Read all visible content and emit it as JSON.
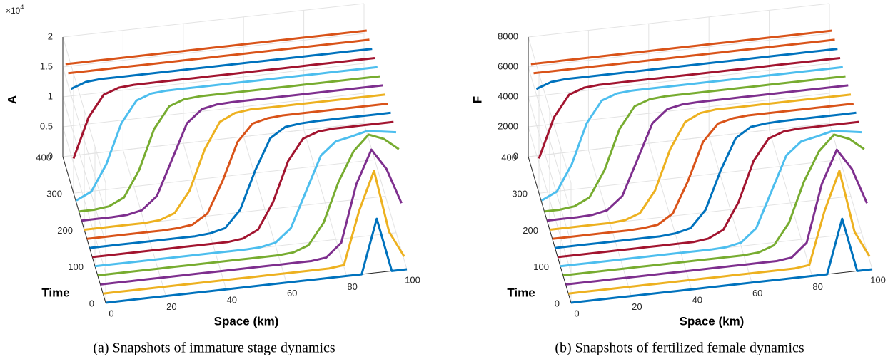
{
  "chart_data": [
    {
      "type": "waterfall",
      "caption": "(a) Snapshots of immature stage dynamics",
      "xlabel": "Space (km)",
      "ylabel": "Time",
      "zlabel": "A",
      "z_multiplier": {
        "base": "×10",
        "exponent": "4"
      },
      "xlim": [
        0,
        100
      ],
      "xticks": [
        0,
        20,
        40,
        60,
        80,
        100
      ],
      "ylim": [
        0,
        400
      ],
      "yticks": [
        0,
        100,
        200,
        300,
        400
      ],
      "zlim": [
        0,
        20000
      ],
      "zticks": [
        0,
        {
          "value": 5000,
          "label": "0.5"
        },
        {
          "value": 10000,
          "label": "1"
        },
        {
          "value": 15000,
          "label": "1.5"
        },
        {
          "value": 20000,
          "label": "2"
        }
      ],
      "grid": true,
      "x": [
        0,
        5,
        10,
        15,
        20,
        25,
        30,
        35,
        40,
        45,
        50,
        55,
        60,
        65,
        70,
        75,
        80,
        85,
        90,
        95,
        100
      ],
      "series": [
        {
          "time": 0,
          "color": "#0072BD",
          "values": [
            0,
            0,
            0,
            0,
            0,
            0,
            0,
            0,
            0,
            0,
            0,
            0,
            0,
            0,
            0,
            0,
            0,
            0,
            9000,
            0,
            0
          ]
        },
        {
          "time": 25,
          "color": "#EDB120",
          "values": [
            0,
            0,
            0,
            0,
            0,
            0,
            0,
            0,
            0,
            0,
            0,
            0,
            0,
            0,
            0,
            0,
            300,
            9000,
            15500,
            5000,
            600
          ]
        },
        {
          "time": 50,
          "color": "#7E2F8E",
          "values": [
            0,
            0,
            0,
            0,
            0,
            0,
            0,
            0,
            0,
            0,
            0,
            0,
            0,
            0,
            0,
            300,
            2500,
            12000,
            17500,
            14000,
            8000
          ]
        },
        {
          "time": 75,
          "color": "#77AC30",
          "values": [
            0,
            0,
            0,
            0,
            0,
            0,
            0,
            0,
            0,
            0,
            0,
            0,
            0,
            200,
            1100,
            4600,
            11200,
            16000,
            18500,
            17500,
            15500
          ]
        },
        {
          "time": 100,
          "color": "#4DBEEE",
          "values": [
            0,
            0,
            0,
            0,
            0,
            0,
            0,
            0,
            0,
            0,
            0,
            100,
            600,
            2700,
            8500,
            14300,
            16400,
            16900,
            17500,
            17200,
            16800
          ]
        },
        {
          "time": 125,
          "color": "#A2142F",
          "values": [
            0,
            0,
            0,
            0,
            0,
            0,
            0,
            0,
            0,
            0,
            300,
            1500,
            5800,
            12400,
            15900,
            16800,
            17000,
            17000,
            17000,
            17000,
            17000
          ]
        },
        {
          "time": 150,
          "color": "#0072BD",
          "values": [
            0,
            0,
            0,
            0,
            0,
            0,
            0,
            0,
            200,
            800,
            3600,
            9900,
            15000,
            16600,
            16900,
            17000,
            17000,
            17000,
            17000,
            17000,
            17000
          ]
        },
        {
          "time": 175,
          "color": "#D95319",
          "values": [
            0,
            0,
            0,
            0,
            0,
            0,
            100,
            400,
            2000,
            7100,
            13400,
            16200,
            16800,
            17000,
            17000,
            17000,
            17000,
            17000,
            17000,
            17000,
            17000
          ]
        },
        {
          "time": 200,
          "color": "#EDB120",
          "values": [
            0,
            0,
            0,
            0,
            0,
            200,
            1100,
            4600,
            11200,
            15500,
            16700,
            17000,
            17000,
            17000,
            17000,
            17000,
            17000,
            17000,
            17000,
            17000,
            17000
          ]
        },
        {
          "time": 225,
          "color": "#7E2F8E",
          "values": [
            0,
            0,
            0,
            100,
            600,
            2700,
            8500,
            14300,
            16400,
            16900,
            17000,
            17000,
            17000,
            17000,
            17000,
            17000,
            17000,
            17000,
            17000,
            17000,
            17000
          ]
        },
        {
          "time": 250,
          "color": "#77AC30",
          "values": [
            0,
            0,
            300,
            1500,
            5800,
            12400,
            15900,
            16800,
            17000,
            17000,
            17000,
            17000,
            17000,
            17000,
            17000,
            17000,
            17000,
            17000,
            17000,
            17000,
            17000
          ]
        },
        {
          "time": 275,
          "color": "#4DBEEE",
          "values": [
            300,
            1500,
            5800,
            12400,
            15900,
            16800,
            17000,
            17000,
            17000,
            17000,
            17000,
            17000,
            17000,
            17000,
            17000,
            17000,
            17000,
            17000,
            17000,
            17000,
            17000
          ]
        },
        {
          "time": 300,
          "color": "#A2142F",
          "values": [
            5800,
            12400,
            15900,
            16800,
            17000,
            17000,
            17000,
            17000,
            17000,
            17000,
            17000,
            17000,
            17000,
            17000,
            17000,
            17000,
            17000,
            17000,
            17000,
            17000,
            17000
          ]
        },
        {
          "time": 325,
          "color": "#0072BD",
          "values": [
            15900,
            16800,
            17000,
            17000,
            17000,
            17000,
            17000,
            17000,
            17000,
            17000,
            17000,
            17000,
            17000,
            17000,
            17000,
            17000,
            17000,
            17000,
            17000,
            17000,
            17000
          ]
        },
        {
          "time": 350,
          "color": "#D95319",
          "values": [
            17000,
            17000,
            17000,
            17000,
            17000,
            17000,
            17000,
            17000,
            17000,
            17000,
            17000,
            17000,
            17000,
            17000,
            17000,
            17000,
            17000,
            17000,
            17000,
            17000,
            17000
          ]
        },
        {
          "time": 375,
          "color": "#D95319",
          "values": [
            17000,
            17000,
            17000,
            17000,
            17000,
            17000,
            17000,
            17000,
            17000,
            17000,
            17000,
            17000,
            17000,
            17000,
            17000,
            17000,
            17000,
            17000,
            17000,
            17000,
            17000
          ]
        }
      ]
    },
    {
      "type": "waterfall",
      "caption": "(b) Snapshots of fertilized female dynamics",
      "xlabel": "Space (km)",
      "ylabel": "Time",
      "zlabel": "F",
      "xlim": [
        0,
        100
      ],
      "xticks": [
        0,
        20,
        40,
        60,
        80,
        100
      ],
      "ylim": [
        0,
        400
      ],
      "yticks": [
        0,
        100,
        200,
        300,
        400
      ],
      "zlim": [
        0,
        8000
      ],
      "zticks": [
        0,
        2000,
        4000,
        6000,
        8000
      ],
      "grid": true,
      "x": [
        0,
        5,
        10,
        15,
        20,
        25,
        30,
        35,
        40,
        45,
        50,
        55,
        60,
        65,
        70,
        75,
        80,
        85,
        90,
        95,
        100
      ],
      "series": [
        {
          "time": 0,
          "color": "#0072BD",
          "values": [
            0,
            0,
            0,
            0,
            0,
            0,
            0,
            0,
            0,
            0,
            0,
            0,
            0,
            0,
            0,
            0,
            0,
            0,
            3600,
            0,
            0
          ]
        },
        {
          "time": 25,
          "color": "#EDB120",
          "values": [
            0,
            0,
            0,
            0,
            0,
            0,
            0,
            0,
            0,
            0,
            0,
            0,
            0,
            0,
            0,
            0,
            120,
            3600,
            6200,
            2000,
            240
          ]
        },
        {
          "time": 50,
          "color": "#7E2F8E",
          "values": [
            0,
            0,
            0,
            0,
            0,
            0,
            0,
            0,
            0,
            0,
            0,
            0,
            0,
            0,
            0,
            120,
            1000,
            4800,
            7000,
            5600,
            3200
          ]
        },
        {
          "time": 75,
          "color": "#77AC30",
          "values": [
            0,
            0,
            0,
            0,
            0,
            0,
            0,
            0,
            0,
            0,
            0,
            0,
            0,
            80,
            440,
            1840,
            4480,
            6400,
            7400,
            7000,
            6200
          ]
        },
        {
          "time": 100,
          "color": "#4DBEEE",
          "values": [
            0,
            0,
            0,
            0,
            0,
            0,
            0,
            0,
            0,
            0,
            0,
            40,
            240,
            1080,
            3400,
            5720,
            6560,
            6760,
            7000,
            6880,
            6720
          ]
        },
        {
          "time": 125,
          "color": "#A2142F",
          "values": [
            0,
            0,
            0,
            0,
            0,
            0,
            0,
            0,
            0,
            0,
            120,
            600,
            2320,
            4960,
            6360,
            6720,
            6800,
            6800,
            6800,
            6800,
            6800
          ]
        },
        {
          "time": 150,
          "color": "#0072BD",
          "values": [
            0,
            0,
            0,
            0,
            0,
            0,
            0,
            0,
            80,
            320,
            1440,
            3960,
            6000,
            6640,
            6760,
            6800,
            6800,
            6800,
            6800,
            6800,
            6800
          ]
        },
        {
          "time": 175,
          "color": "#D95319",
          "values": [
            0,
            0,
            0,
            0,
            0,
            0,
            40,
            160,
            800,
            2840,
            5360,
            6480,
            6720,
            6800,
            6800,
            6800,
            6800,
            6800,
            6800,
            6800,
            6800
          ]
        },
        {
          "time": 200,
          "color": "#EDB120",
          "values": [
            0,
            0,
            0,
            0,
            0,
            80,
            440,
            1840,
            4480,
            6200,
            6680,
            6800,
            6800,
            6800,
            6800,
            6800,
            6800,
            6800,
            6800,
            6800,
            6800
          ]
        },
        {
          "time": 225,
          "color": "#7E2F8E",
          "values": [
            0,
            0,
            0,
            40,
            240,
            1080,
            3400,
            5720,
            6560,
            6760,
            6800,
            6800,
            6800,
            6800,
            6800,
            6800,
            6800,
            6800,
            6800,
            6800,
            6800
          ]
        },
        {
          "time": 250,
          "color": "#77AC30",
          "values": [
            0,
            0,
            120,
            600,
            2320,
            4960,
            6360,
            6720,
            6800,
            6800,
            6800,
            6800,
            6800,
            6800,
            6800,
            6800,
            6800,
            6800,
            6800,
            6800,
            6800
          ]
        },
        {
          "time": 275,
          "color": "#4DBEEE",
          "values": [
            120,
            600,
            2320,
            4960,
            6360,
            6720,
            6800,
            6800,
            6800,
            6800,
            6800,
            6800,
            6800,
            6800,
            6800,
            6800,
            6800,
            6800,
            6800,
            6800,
            6800
          ]
        },
        {
          "time": 300,
          "color": "#A2142F",
          "values": [
            2320,
            4960,
            6360,
            6720,
            6800,
            6800,
            6800,
            6800,
            6800,
            6800,
            6800,
            6800,
            6800,
            6800,
            6800,
            6800,
            6800,
            6800,
            6800,
            6800,
            6800
          ]
        },
        {
          "time": 325,
          "color": "#0072BD",
          "values": [
            6360,
            6720,
            6800,
            6800,
            6800,
            6800,
            6800,
            6800,
            6800,
            6800,
            6800,
            6800,
            6800,
            6800,
            6800,
            6800,
            6800,
            6800,
            6800,
            6800,
            6800
          ]
        },
        {
          "time": 350,
          "color": "#D95319",
          "values": [
            6800,
            6800,
            6800,
            6800,
            6800,
            6800,
            6800,
            6800,
            6800,
            6800,
            6800,
            6800,
            6800,
            6800,
            6800,
            6800,
            6800,
            6800,
            6800,
            6800,
            6800
          ]
        },
        {
          "time": 375,
          "color": "#D95319",
          "values": [
            6800,
            6800,
            6800,
            6800,
            6800,
            6800,
            6800,
            6800,
            6800,
            6800,
            6800,
            6800,
            6800,
            6800,
            6800,
            6800,
            6800,
            6800,
            6800,
            6800,
            6800
          ]
        }
      ]
    }
  ]
}
